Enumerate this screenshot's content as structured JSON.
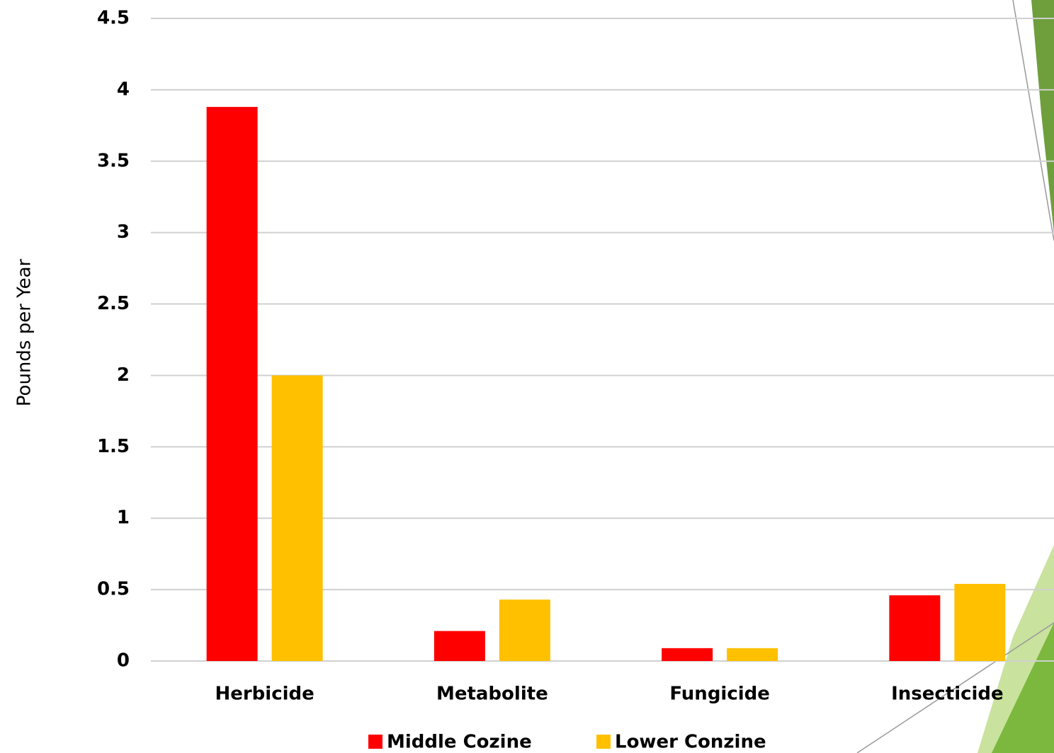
{
  "chart_data": {
    "type": "bar",
    "y_label": "Pounds per Year",
    "categories": [
      "Herbicide",
      "Metabolite",
      "Fungicide",
      "Insecticide"
    ],
    "series": [
      {
        "name": "Middle Cozine",
        "color": "#ff0000",
        "values": [
          3.88,
          0.21,
          0.09,
          0.46
        ]
      },
      {
        "name": "Lower Conzine",
        "color": "#ffc000",
        "values": [
          2.0,
          0.43,
          0.09,
          0.54
        ]
      }
    ],
    "ylim": [
      0,
      4.5
    ],
    "yticks": [
      0,
      0.5,
      1,
      1.5,
      2,
      2.5,
      3,
      3.5,
      4,
      4.5
    ],
    "grid": true,
    "legend": "bottom"
  }
}
